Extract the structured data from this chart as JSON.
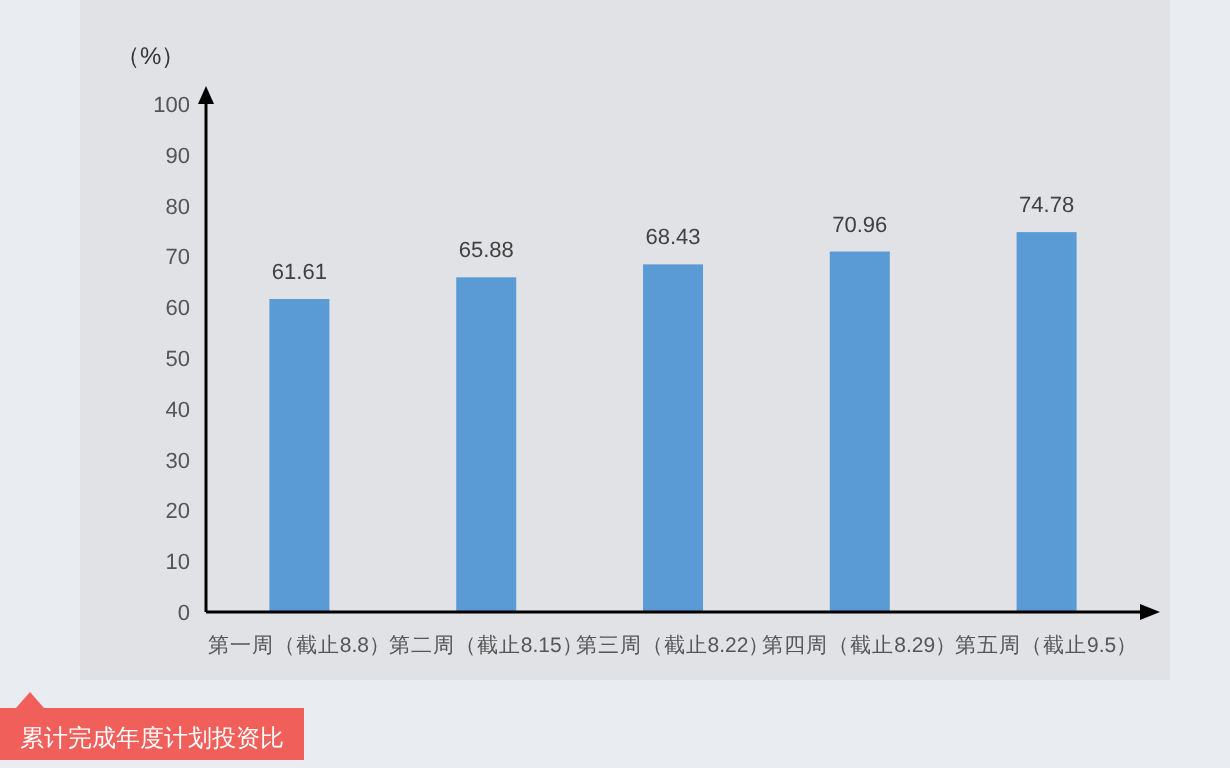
{
  "chart_data": {
    "type": "bar",
    "ylabel": "（%）",
    "categories": [
      "第一周（截止8.8）",
      "第二周（截止8.15）",
      "第三周（截止8.22）",
      "第四周（截止8.29）",
      "第五周（截止9.5）"
    ],
    "values": [
      61.61,
      65.88,
      68.43,
      70.96,
      74.78
    ],
    "color": "#5b9bd5",
    "ylim": [
      0,
      100
    ],
    "yticks": [
      0,
      10,
      20,
      30,
      40,
      50,
      60,
      70,
      80,
      90,
      100
    ],
    "data_labels": true,
    "annotations": [
      "累计完成年度计划投资比"
    ]
  }
}
